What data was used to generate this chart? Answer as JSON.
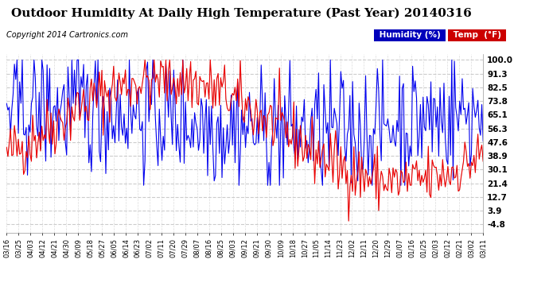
{
  "title": "Outdoor Humidity At Daily High Temperature (Past Year) 20140316",
  "copyright": "Copyright 2014 Cartronics.com",
  "yticks": [
    100.0,
    91.3,
    82.5,
    73.8,
    65.1,
    56.3,
    47.6,
    38.9,
    30.1,
    21.4,
    12.7,
    3.9,
    -4.8
  ],
  "ylim": [
    -10.0,
    104.0
  ],
  "background_color": "#ffffff",
  "plot_bg_color": "#ffffff",
  "grid_color": "#cccccc",
  "humidity_color": "#0000ee",
  "temp_color": "#ee0000",
  "title_fontsize": 11,
  "copyright_fontsize": 7,
  "legend_humidity_bg": "#0000cc",
  "legend_temp_bg": "#cc0000",
  "xtick_labels": [
    "03/16",
    "03/25",
    "04/03",
    "04/12",
    "04/21",
    "04/30",
    "05/09",
    "05/18",
    "05/27",
    "06/05",
    "06/14",
    "06/23",
    "07/02",
    "07/11",
    "07/20",
    "07/29",
    "08/07",
    "08/16",
    "08/25",
    "09/03",
    "09/12",
    "09/21",
    "09/30",
    "10/09",
    "10/18",
    "10/27",
    "11/05",
    "11/14",
    "11/23",
    "12/02",
    "12/11",
    "12/20",
    "12/29",
    "01/07",
    "01/16",
    "01/25",
    "02/03",
    "02/12",
    "02/21",
    "03/02",
    "03/11"
  ],
  "n_points": 366,
  "seed": 42
}
